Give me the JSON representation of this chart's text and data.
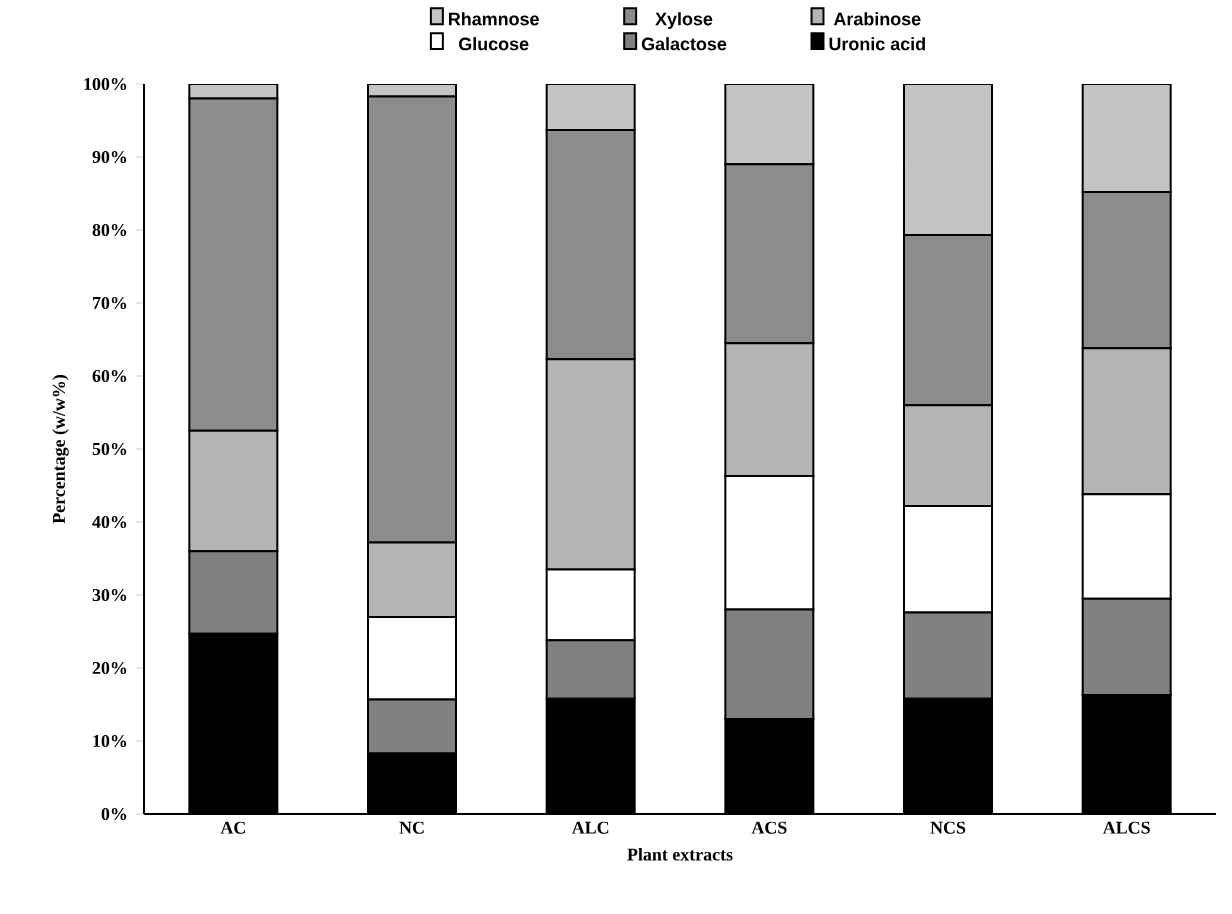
{
  "chart_data": {
    "type": "bar",
    "stacked": true,
    "xlabel": "Plant extracts",
    "ylabel": "Percentage (w/w%)",
    "categories": [
      "AC",
      "NC",
      "ALC",
      "ACS",
      "NCS",
      "ALCS"
    ],
    "series": [
      {
        "name": "Uronic acid",
        "color": "#000000",
        "values": [
          24.7,
          8.3,
          15.8,
          13,
          15.8,
          16.3
        ]
      },
      {
        "name": "Galactose",
        "color": "#808080",
        "values": [
          11.3,
          7.4,
          8,
          15,
          11.8,
          13.2
        ]
      },
      {
        "name": "Glucose",
        "color": "#ffffff",
        "values": [
          0,
          11.3,
          9.7,
          18.3,
          14.6,
          14.3
        ]
      },
      {
        "name": "Arabinose",
        "color": "#b4b4b4",
        "values": [
          16.5,
          10.2,
          28.8,
          18.2,
          13.8,
          20
        ]
      },
      {
        "name": "Xylose",
        "color": "#8c8c8c",
        "values": [
          45.5,
          61.1,
          31.4,
          24.5,
          23.3,
          21.4
        ]
      },
      {
        "name": "Rhamnose",
        "color": "#c4c4c4",
        "values": [
          2,
          1.7,
          6.3,
          11,
          20.7,
          14.8
        ]
      }
    ],
    "ylim": [
      0,
      100
    ],
    "yticks": [
      {
        "value": 0,
        "label": "0%"
      },
      {
        "value": 10,
        "label": "10%"
      },
      {
        "value": 20,
        "label": "20%"
      },
      {
        "value": 30,
        "label": "30%"
      },
      {
        "value": 40,
        "label": "40%"
      },
      {
        "value": 50,
        "label": "50%"
      },
      {
        "value": 60,
        "label": "60%"
      },
      {
        "value": 70,
        "label": "70%"
      },
      {
        "value": 80,
        "label": "80%"
      },
      {
        "value": 90,
        "label": "90%"
      },
      {
        "value": 100,
        "label": "100%"
      }
    ],
    "legend": "top"
  }
}
